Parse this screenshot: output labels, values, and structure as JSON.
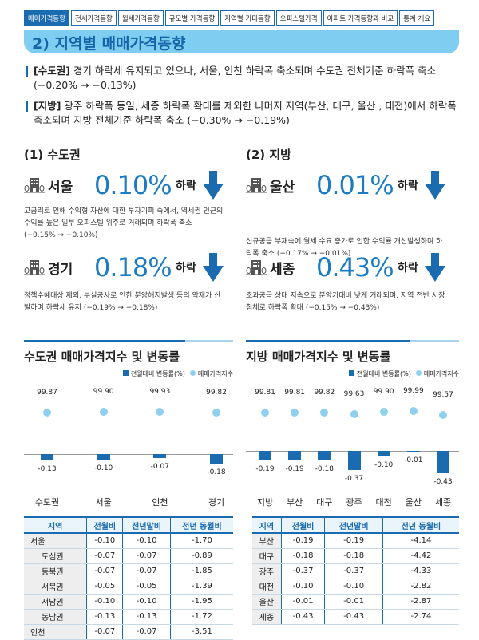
{
  "tabs": [
    "매매가격동향",
    "전세가격동향",
    "월세가격동향",
    "규모별 가격동향",
    "지역별 기타동향",
    "오피스텔가격",
    "아파트 가격동향과 비교",
    "통계 개요"
  ],
  "title": "2) 지역별 매매가격동향",
  "bullets": [
    {
      "tag": "[수도권]",
      "text": " 경기 하락세 유지되고 있으나, 서울, 인천 하락폭 축소되며 수도권 전체기준 하락폭 축소 (−0.20% → −0.13%)"
    },
    {
      "tag": "[지방]",
      "text": " 광주 하락폭 동일, 세종 하락폭 확대를 제외한 나머지 지역(부산, 대구,  울산 , 대전)에서 하락폭 축소되며 지방 전체기준 하락폭 축소 (−0.30% → −0.19%)"
    }
  ],
  "sections": {
    "capital": "(1) 수도권",
    "local": "(2) 지방"
  },
  "highlights": [
    {
      "region": "서울",
      "value": "0.10%",
      "dir": "하락",
      "desc": "고금리로 인해 수익형 자산에 대한 투자기피 속에서, 역세권 인근의 수익률 높은 일부 오피스텔 위주로 거래되며 하락폭 축소 (−0.15% → −0.10%)"
    },
    {
      "region": "울산",
      "value": "0.01%",
      "dir": "하락",
      "desc": "신규공급 부재속에 월세 수요 증가로 인한 수익률 개선발생하며 하락폭 축소 (−0.17% → −0.01%)"
    },
    {
      "region": "경기",
      "value": "0.18%",
      "dir": "하락",
      "desc": "정책수혜대상 제외, 부실공사로 인한 분양해지발생 등의 악재가 산발하며 하락세 유지 (−0.19% → −0.18%)"
    },
    {
      "region": "세종",
      "value": "0.43%",
      "dir": "하락",
      "desc": "초과공급 상태 지속으로 분양가대비 낮게 거래되며, 지역 전반 시장침체로 하락폭 확대 (−0.15% → −0.43%)"
    }
  ],
  "chart_data": [
    {
      "type": "bar",
      "title": "수도권 매매가격지수 및 변동률",
      "legend": [
        "전월대비 변동률(%)",
        "매매가격지수"
      ],
      "categories": [
        "수도권",
        "서울",
        "인천",
        "경기"
      ],
      "change": [
        -0.13,
        -0.1,
        -0.07,
        -0.18
      ],
      "change_labels": [
        "-0.13",
        "-0.10",
        "-0.07",
        "-0.18"
      ],
      "index": [
        99.87,
        99.9,
        99.93,
        99.82
      ],
      "index_labels": [
        "99.87",
        "99.90",
        "99.93",
        "99.82"
      ]
    },
    {
      "type": "bar",
      "title": "지방 매매가격지수 및 변동률",
      "legend": [
        "전월대비 변동률(%)",
        "매매가격지수"
      ],
      "categories": [
        "지방",
        "부산",
        "대구",
        "광주",
        "대전",
        "울산",
        "세종"
      ],
      "change": [
        -0.19,
        -0.19,
        -0.18,
        -0.37,
        -0.1,
        -0.01,
        -0.43
      ],
      "change_labels": [
        "-0.19",
        "-0.19",
        "-0.18",
        "-0.37",
        "-0.10",
        "-0.01",
        "-0.43"
      ],
      "index": [
        99.81,
        99.81,
        99.82,
        99.63,
        99.9,
        99.99,
        99.57
      ],
      "index_labels": [
        "99.81",
        "99.81",
        "99.82",
        "99.63",
        "99.90",
        "99.99",
        "99.57"
      ]
    }
  ],
  "tables": [
    {
      "headers": [
        "지역",
        "전월비",
        "전년말비",
        "전년 동월비"
      ],
      "rows": [
        [
          "서울",
          "-0.10",
          "-0.10",
          "-1.70"
        ],
        [
          "도심권",
          "-0.07",
          "-0.07",
          "-0.89"
        ],
        [
          "동북권",
          "-0.07",
          "-0.07",
          "-1.85"
        ],
        [
          "서북권",
          "-0.05",
          "-0.05",
          "-1.39"
        ],
        [
          "서남권",
          "-0.10",
          "-0.10",
          "-1.95"
        ],
        [
          "동남권",
          "-0.13",
          "-0.13",
          "-1.72"
        ],
        [
          "인천",
          "-0.07",
          "-0.07",
          "-3.51"
        ]
      ]
    },
    {
      "headers": [
        "지역",
        "전월비",
        "전년말비",
        "전년 동월비"
      ],
      "rows": [
        [
          "부산",
          "-0.19",
          "-0.19",
          "-4.14"
        ],
        [
          "대구",
          "-0.18",
          "-0.18",
          "-4.42"
        ],
        [
          "광주",
          "-0.37",
          "-0.37",
          "-4.33"
        ],
        [
          "대전",
          "-0.10",
          "-0.10",
          "-2.82"
        ],
        [
          "울산",
          "-0.01",
          "-0.01",
          "-2.87"
        ],
        [
          "세종",
          "-0.43",
          "-0.43",
          "-2.74"
        ]
      ]
    }
  ]
}
